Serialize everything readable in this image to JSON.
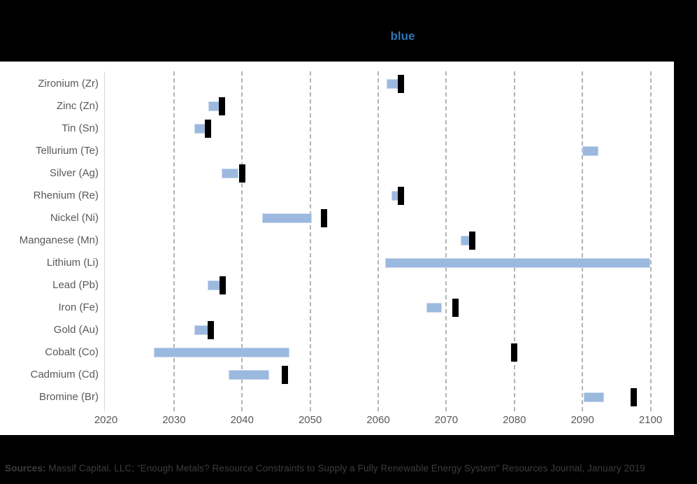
{
  "title": "blue",
  "footer": {
    "label": "Sources:",
    "text": " Massif Capital, LLC; “Enough Metals? Resource Constraints to Supply a Fully Renewable Energy System” Resources Journal, January 2019"
  },
  "colors": {
    "background": "#000000",
    "panel": "#FFFFFF",
    "title": "#2E74B5",
    "bar_fill": "#9BB9DF",
    "bar_border": "#C9D7EE",
    "marker": "#000000",
    "gridline": "#A6A6A6",
    "axis_line": "#D9D9D9",
    "label_text": "#595959",
    "footer_text": "#3D3D3D"
  },
  "chart_data": {
    "type": "bar",
    "subtype": "horizontal-floating-range-with-markers",
    "title": "blue",
    "xlabel": "",
    "ylabel": "",
    "xlim": [
      2020,
      2100
    ],
    "x_ticks": [
      2020,
      2030,
      2040,
      2050,
      2060,
      2070,
      2080,
      2090,
      2100
    ],
    "grid": "vertical-dashed",
    "legend": "none",
    "categories": [
      "Zironium (Zr)",
      "Zinc (Zn)",
      "Tin (Sn)",
      "Tellurium (Te)",
      "Silver (Ag)",
      "Rhenium (Re)",
      "Nickel (Ni)",
      "Manganese (Mn)",
      "Lithium (Li)",
      "Lead (Pb)",
      "Iron (Fe)",
      "Gold (Au)",
      "Cobalt (Co)",
      "Cadmium (Cd)",
      "Bromine (Br)"
    ],
    "rows": [
      {
        "label": "Zironium (Zr)",
        "bar": [
          2061.2,
          2063.1
        ],
        "marker": 2063.3
      },
      {
        "label": "Zinc (Zn)",
        "bar": [
          2035.0,
          2037.2
        ],
        "marker": 2037.0
      },
      {
        "label": "Tin (Sn)",
        "bar": [
          2033.0,
          2034.6
        ],
        "marker": 2035.0
      },
      {
        "label": "Tellurium (Te)",
        "bar": [
          2090.0,
          2092.3
        ],
        "marker": null
      },
      {
        "label": "Silver (Ag)",
        "bar": [
          2037.0,
          2039.5
        ],
        "marker": 2040.0
      },
      {
        "label": "Rhenium (Re)",
        "bar": [
          2062.0,
          2063.6
        ],
        "marker": 2063.3
      },
      {
        "label": "Nickel (Ni)",
        "bar": [
          2043.0,
          2050.2
        ],
        "marker": 2052.0
      },
      {
        "label": "Manganese (Mn)",
        "bar": [
          2072.1,
          2074.0
        ],
        "marker": 2073.8
      },
      {
        "label": "Lithium (Li)",
        "bar": [
          2061.0,
          2100.0
        ],
        "marker": null
      },
      {
        "label": "Lead (Pb)",
        "bar": [
          2034.9,
          2036.8
        ],
        "marker": 2037.1
      },
      {
        "label": "Iron (Fe)",
        "bar": [
          2067.1,
          2069.3
        ],
        "marker": 2071.3
      },
      {
        "label": "Gold (Au)",
        "bar": [
          2033.0,
          2035.0
        ],
        "marker": 2035.4
      },
      {
        "label": "Cobalt (Co)",
        "bar": [
          2027.0,
          2047.0
        ],
        "marker": 2080.0
      },
      {
        "label": "Cadmium (Cd)",
        "bar": [
          2038.0,
          2044.0
        ],
        "marker": 2046.3
      },
      {
        "label": "Bromine (Br)",
        "bar": [
          2090.2,
          2093.2
        ],
        "marker": 2097.5
      }
    ]
  }
}
